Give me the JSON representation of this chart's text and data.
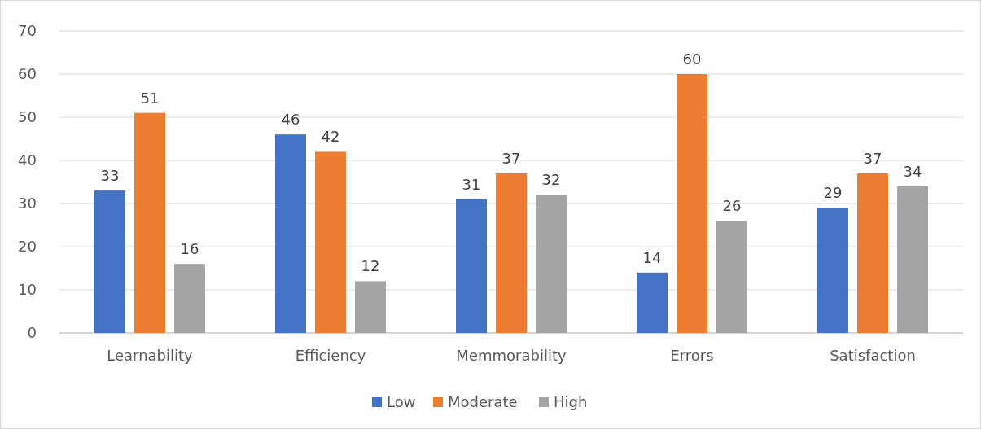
{
  "chart_data": {
    "type": "bar",
    "categories": [
      "Learnability",
      "Efficiency",
      "Memmorability",
      "Errors",
      "Satisfaction"
    ],
    "series": [
      {
        "name": "Low",
        "color": "#4472c4",
        "values": [
          33,
          46,
          31,
          14,
          29
        ]
      },
      {
        "name": "Moderate",
        "color": "#ed7d31",
        "values": [
          51,
          42,
          37,
          60,
          37
        ]
      },
      {
        "name": "High",
        "color": "#a5a5a5",
        "values": [
          16,
          12,
          32,
          26,
          34
        ]
      }
    ],
    "ylim": [
      0,
      70
    ],
    "yticks": [
      0,
      10,
      20,
      30,
      40,
      50,
      60,
      70
    ],
    "grid": "y",
    "legend": "bottom",
    "data_labels": true
  }
}
